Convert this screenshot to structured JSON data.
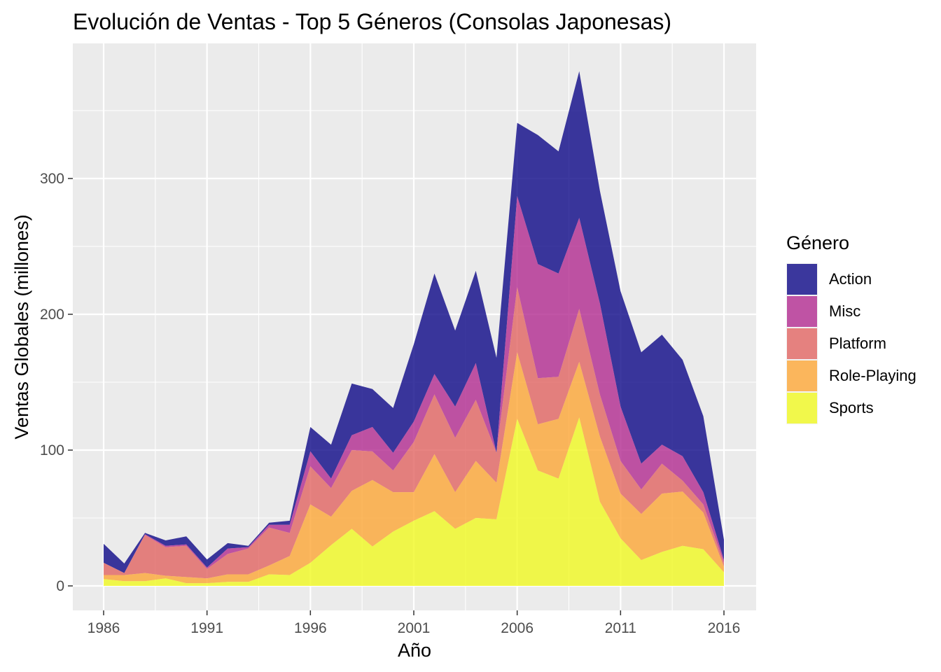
{
  "chart_data": {
    "type": "area",
    "stacked": true,
    "title": "Evolución de Ventas - Top 5 Géneros (Consolas Japonesas)",
    "xlabel": "Año",
    "ylabel": "Ventas Globales (millones)",
    "xlim": [
      1986,
      2016
    ],
    "ylim": [
      0,
      380
    ],
    "xticks": [
      "1986",
      "1991",
      "1996",
      "2001",
      "2006",
      "2011",
      "2016"
    ],
    "yticks": [
      "0",
      "100",
      "200",
      "300"
    ],
    "grid": true,
    "legend": {
      "title": "Género",
      "position": "right"
    },
    "x": [
      1986,
      1987,
      1988,
      1989,
      1990,
      1991,
      1992,
      1993,
      1994,
      1995,
      1996,
      1997,
      1998,
      1999,
      2000,
      2001,
      2002,
      2003,
      2004,
      2005,
      2006,
      2007,
      2008,
      2009,
      2010,
      2011,
      2012,
      2013,
      2014,
      2015,
      2016
    ],
    "series": [
      {
        "name": "Sports",
        "color": "#F0F921",
        "values": [
          5,
          3.5,
          3.5,
          5.5,
          2,
          2,
          3,
          3,
          8.5,
          8,
          17,
          30,
          42,
          29,
          40,
          48,
          55,
          42,
          50,
          49,
          123,
          85,
          79,
          124,
          62,
          35,
          19,
          25,
          29.5,
          27,
          10
        ]
      },
      {
        "name": "Role-Playing",
        "color": "#FCA636",
        "values": [
          3,
          4.5,
          6,
          2,
          4.5,
          3.5,
          5.5,
          5.5,
          6.5,
          14,
          43,
          21,
          28,
          49,
          29,
          21,
          42,
          27,
          42,
          27,
          49,
          34,
          44,
          41,
          48,
          33,
          34,
          43,
          40,
          27,
          4
        ]
      },
      {
        "name": "Platform",
        "color": "#E16462",
        "values": [
          9,
          1.5,
          28,
          21,
          23,
          7,
          15,
          19,
          28,
          17,
          28,
          21,
          30,
          21,
          16,
          37,
          44,
          40,
          45,
          22,
          48,
          34,
          31,
          39,
          31,
          24,
          18,
          22,
          8,
          6,
          3
        ]
      },
      {
        "name": "Misc",
        "color": "#B12A90",
        "values": [
          0,
          0,
          0.5,
          1,
          1,
          1,
          4,
          1,
          2,
          6,
          11,
          7,
          11,
          18,
          13,
          15,
          15,
          23,
          27,
          0,
          67,
          84,
          76,
          67,
          67,
          40,
          19,
          14,
          18,
          9,
          2
        ]
      },
      {
        "name": "Action",
        "color": "#0D0887",
        "values": [
          14,
          7,
          1,
          4,
          6,
          6,
          4,
          1,
          1.5,
          3,
          18,
          25,
          38,
          28,
          33,
          57,
          74,
          56,
          68,
          70,
          54,
          95,
          90,
          108,
          83,
          85,
          82,
          81,
          71,
          56,
          15
        ]
      }
    ]
  }
}
